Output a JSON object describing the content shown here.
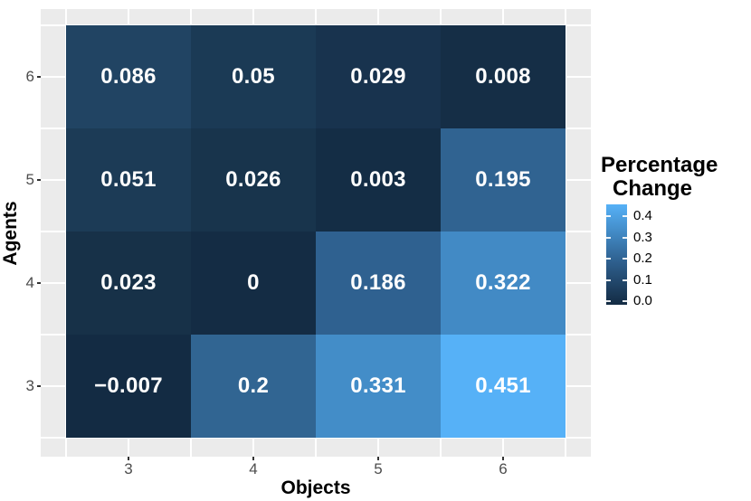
{
  "figure": {
    "background": "#ffffff",
    "panel_background": "#ebebeb",
    "gridline_color": "#ffffff",
    "tick_mark_color": "#333333",
    "tick_label_color": "#4d4d4d"
  },
  "chart_data": {
    "type": "heatmap",
    "title": "",
    "xlabel": "Objects",
    "ylabel": "Agents",
    "x_ticks": [
      "3",
      "4",
      "5",
      "6"
    ],
    "y_ticks": [
      "6",
      "5",
      "4",
      "3"
    ],
    "value_range": [
      -0.007,
      0.451
    ],
    "colormap": {
      "low": "#132B43",
      "high": "#56B1F7"
    },
    "grid": true,
    "rows": [
      {
        "agents": 6,
        "cells": [
          {
            "objects": 3,
            "value": 0.086,
            "label": "0.086",
            "color": "#214463"
          },
          {
            "objects": 4,
            "value": 0.05,
            "label": "0.05",
            "color": "#1B3A55"
          },
          {
            "objects": 5,
            "value": 0.029,
            "label": "0.029",
            "color": "#18334E"
          },
          {
            "objects": 6,
            "value": 0.008,
            "label": "0.008",
            "color": "#152E46"
          }
        ]
      },
      {
        "agents": 5,
        "cells": [
          {
            "objects": 3,
            "value": 0.051,
            "label": "0.051",
            "color": "#1C3B56"
          },
          {
            "objects": 4,
            "value": 0.026,
            "label": "0.026",
            "color": "#18344C"
          },
          {
            "objects": 5,
            "value": 0.003,
            "label": "0.003",
            "color": "#142D45"
          },
          {
            "objects": 6,
            "value": 0.195,
            "label": "0.195",
            "color": "#306391"
          }
        ]
      },
      {
        "agents": 4,
        "cells": [
          {
            "objects": 3,
            "value": 0.023,
            "label": "0.023",
            "color": "#173148"
          },
          {
            "objects": 4,
            "value": 0,
            "label": "0",
            "color": "#142C44"
          },
          {
            "objects": 5,
            "value": 0.186,
            "label": "0.186",
            "color": "#2F6190"
          },
          {
            "objects": 6,
            "value": 0.322,
            "label": "0.322",
            "color": "#428AC5"
          }
        ]
      },
      {
        "agents": 3,
        "cells": [
          {
            "objects": 3,
            "value": -0.007,
            "label": "−0.007",
            "color": "#132B43"
          },
          {
            "objects": 4,
            "value": 0.2,
            "label": "0.2",
            "color": "#316592"
          },
          {
            "objects": 5,
            "value": 0.331,
            "label": "0.331",
            "color": "#438DC8"
          },
          {
            "objects": 6,
            "value": 0.451,
            "label": "0.451",
            "color": "#56B1F7"
          }
        ]
      }
    ],
    "legend": {
      "position": "right",
      "title_line1": "Percentage",
      "title_line2": "Change",
      "labels": [
        "0.4",
        "0.3",
        "0.2",
        "0.1",
        "0.0"
      ],
      "gradient_stops_bottom_to_top": [
        {
          "color": "#132B43",
          "pos": 0
        },
        {
          "color": "#2F6190",
          "pos": 0.44
        },
        {
          "color": "#428AC5",
          "pos": 0.72
        },
        {
          "color": "#56B1F7",
          "pos": 1
        }
      ]
    }
  }
}
